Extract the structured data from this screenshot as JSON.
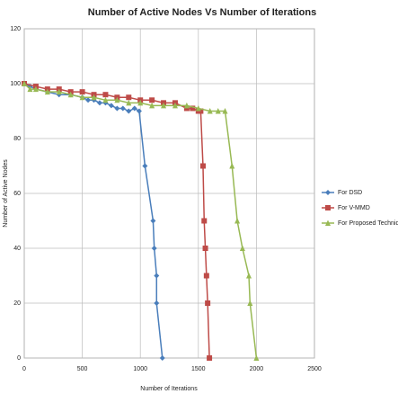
{
  "chart_data": {
    "type": "line",
    "title": "Number of Active Nodes Vs Number of Iterations",
    "x_label": "Number of Iterations",
    "y_label": "Number of Active Nodes",
    "xlim": [
      0,
      2500
    ],
    "xticks": [
      0,
      500,
      1000,
      1500,
      2000,
      2500
    ],
    "ylim": [
      0,
      120
    ],
    "yticks": [
      0,
      20,
      40,
      60,
      80,
      100,
      120
    ],
    "grid": true,
    "legend": "right",
    "series": [
      {
        "name": "For DSD",
        "color": "#4a7ebb",
        "marker": "diamond",
        "x": [
          0,
          50,
          100,
          200,
          300,
          400,
          500,
          550,
          600,
          650,
          700,
          750,
          800,
          850,
          900,
          950,
          990,
          1040,
          1110,
          1120,
          1140,
          1140,
          1190
        ],
        "values": [
          100,
          99,
          98,
          97,
          96,
          96,
          95,
          94,
          94,
          93,
          93,
          92,
          91,
          91,
          90,
          91,
          90,
          70,
          50,
          40,
          30,
          20,
          0
        ]
      },
      {
        "name": "For V-MMD",
        "color": "#be4b48",
        "marker": "square",
        "x": [
          0,
          100,
          200,
          300,
          400,
          500,
          600,
          700,
          800,
          900,
          1000,
          1100,
          1200,
          1300,
          1400,
          1450,
          1500,
          1520,
          1540,
          1550,
          1560,
          1570,
          1580,
          1595
        ],
        "values": [
          100,
          99,
          98,
          98,
          97,
          97,
          96,
          96,
          95,
          95,
          94,
          94,
          93,
          93,
          91,
          91,
          90,
          90,
          70,
          50,
          40,
          30,
          20,
          0
        ]
      },
      {
        "name": "For Proposed Technique",
        "color": "#98b954",
        "marker": "triangle",
        "x": [
          0,
          50,
          100,
          200,
          300,
          400,
          500,
          600,
          700,
          800,
          900,
          1000,
          1100,
          1200,
          1300,
          1400,
          1500,
          1600,
          1670,
          1730,
          1790,
          1835,
          1880,
          1935,
          1945,
          2000
        ],
        "values": [
          100,
          98,
          98,
          97,
          97,
          96,
          95,
          95,
          94,
          94,
          93,
          93,
          92,
          92,
          92,
          92,
          91,
          90,
          90,
          90,
          70,
          50,
          40,
          30,
          20,
          0
        ]
      }
    ]
  }
}
